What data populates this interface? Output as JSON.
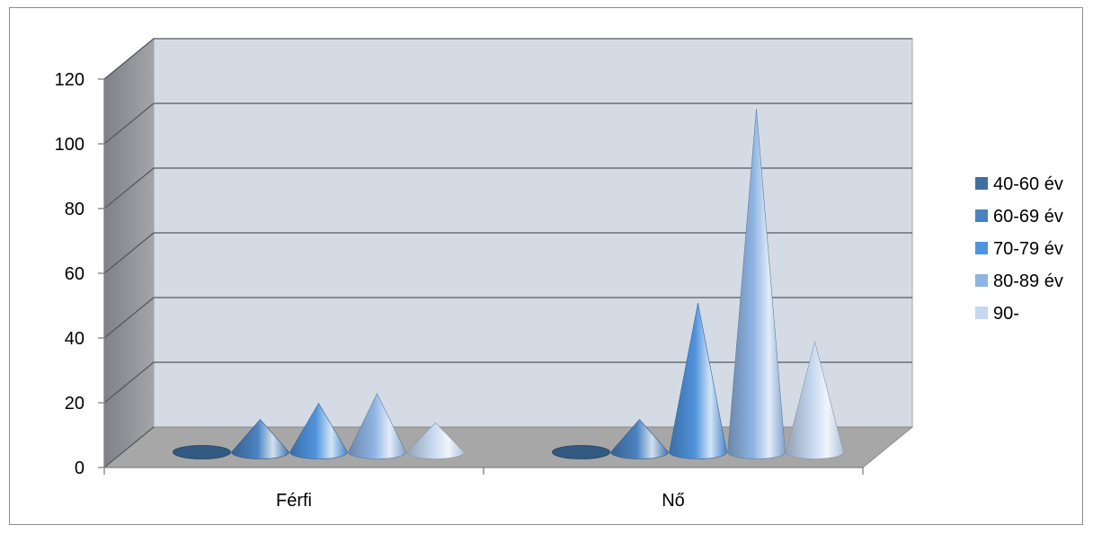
{
  "chart_data": {
    "type": "bar",
    "style": "3d-cone",
    "categories": [
      "Férfi",
      "Nő"
    ],
    "series": [
      {
        "name": "40-60 év",
        "color": "#3e6fa0",
        "values": [
          0,
          0
        ]
      },
      {
        "name": "60-69 év",
        "color": "#4a82c0",
        "values": [
          9,
          9
        ]
      },
      {
        "name": "70-79 év",
        "color": "#4f93dc",
        "values": [
          14,
          45
        ]
      },
      {
        "name": "80-89 év",
        "color": "#8eb4e3",
        "values": [
          17,
          105
        ]
      },
      {
        "name": "90-",
        "color": "#c5d8f0",
        "values": [
          8,
          33
        ]
      }
    ],
    "yticks": [
      "0",
      "20",
      "40",
      "60",
      "80",
      "100",
      "120"
    ],
    "ylim": [
      0,
      120
    ],
    "grid": true,
    "legend_position": "right",
    "title": "",
    "xlabel": "",
    "ylabel": ""
  }
}
